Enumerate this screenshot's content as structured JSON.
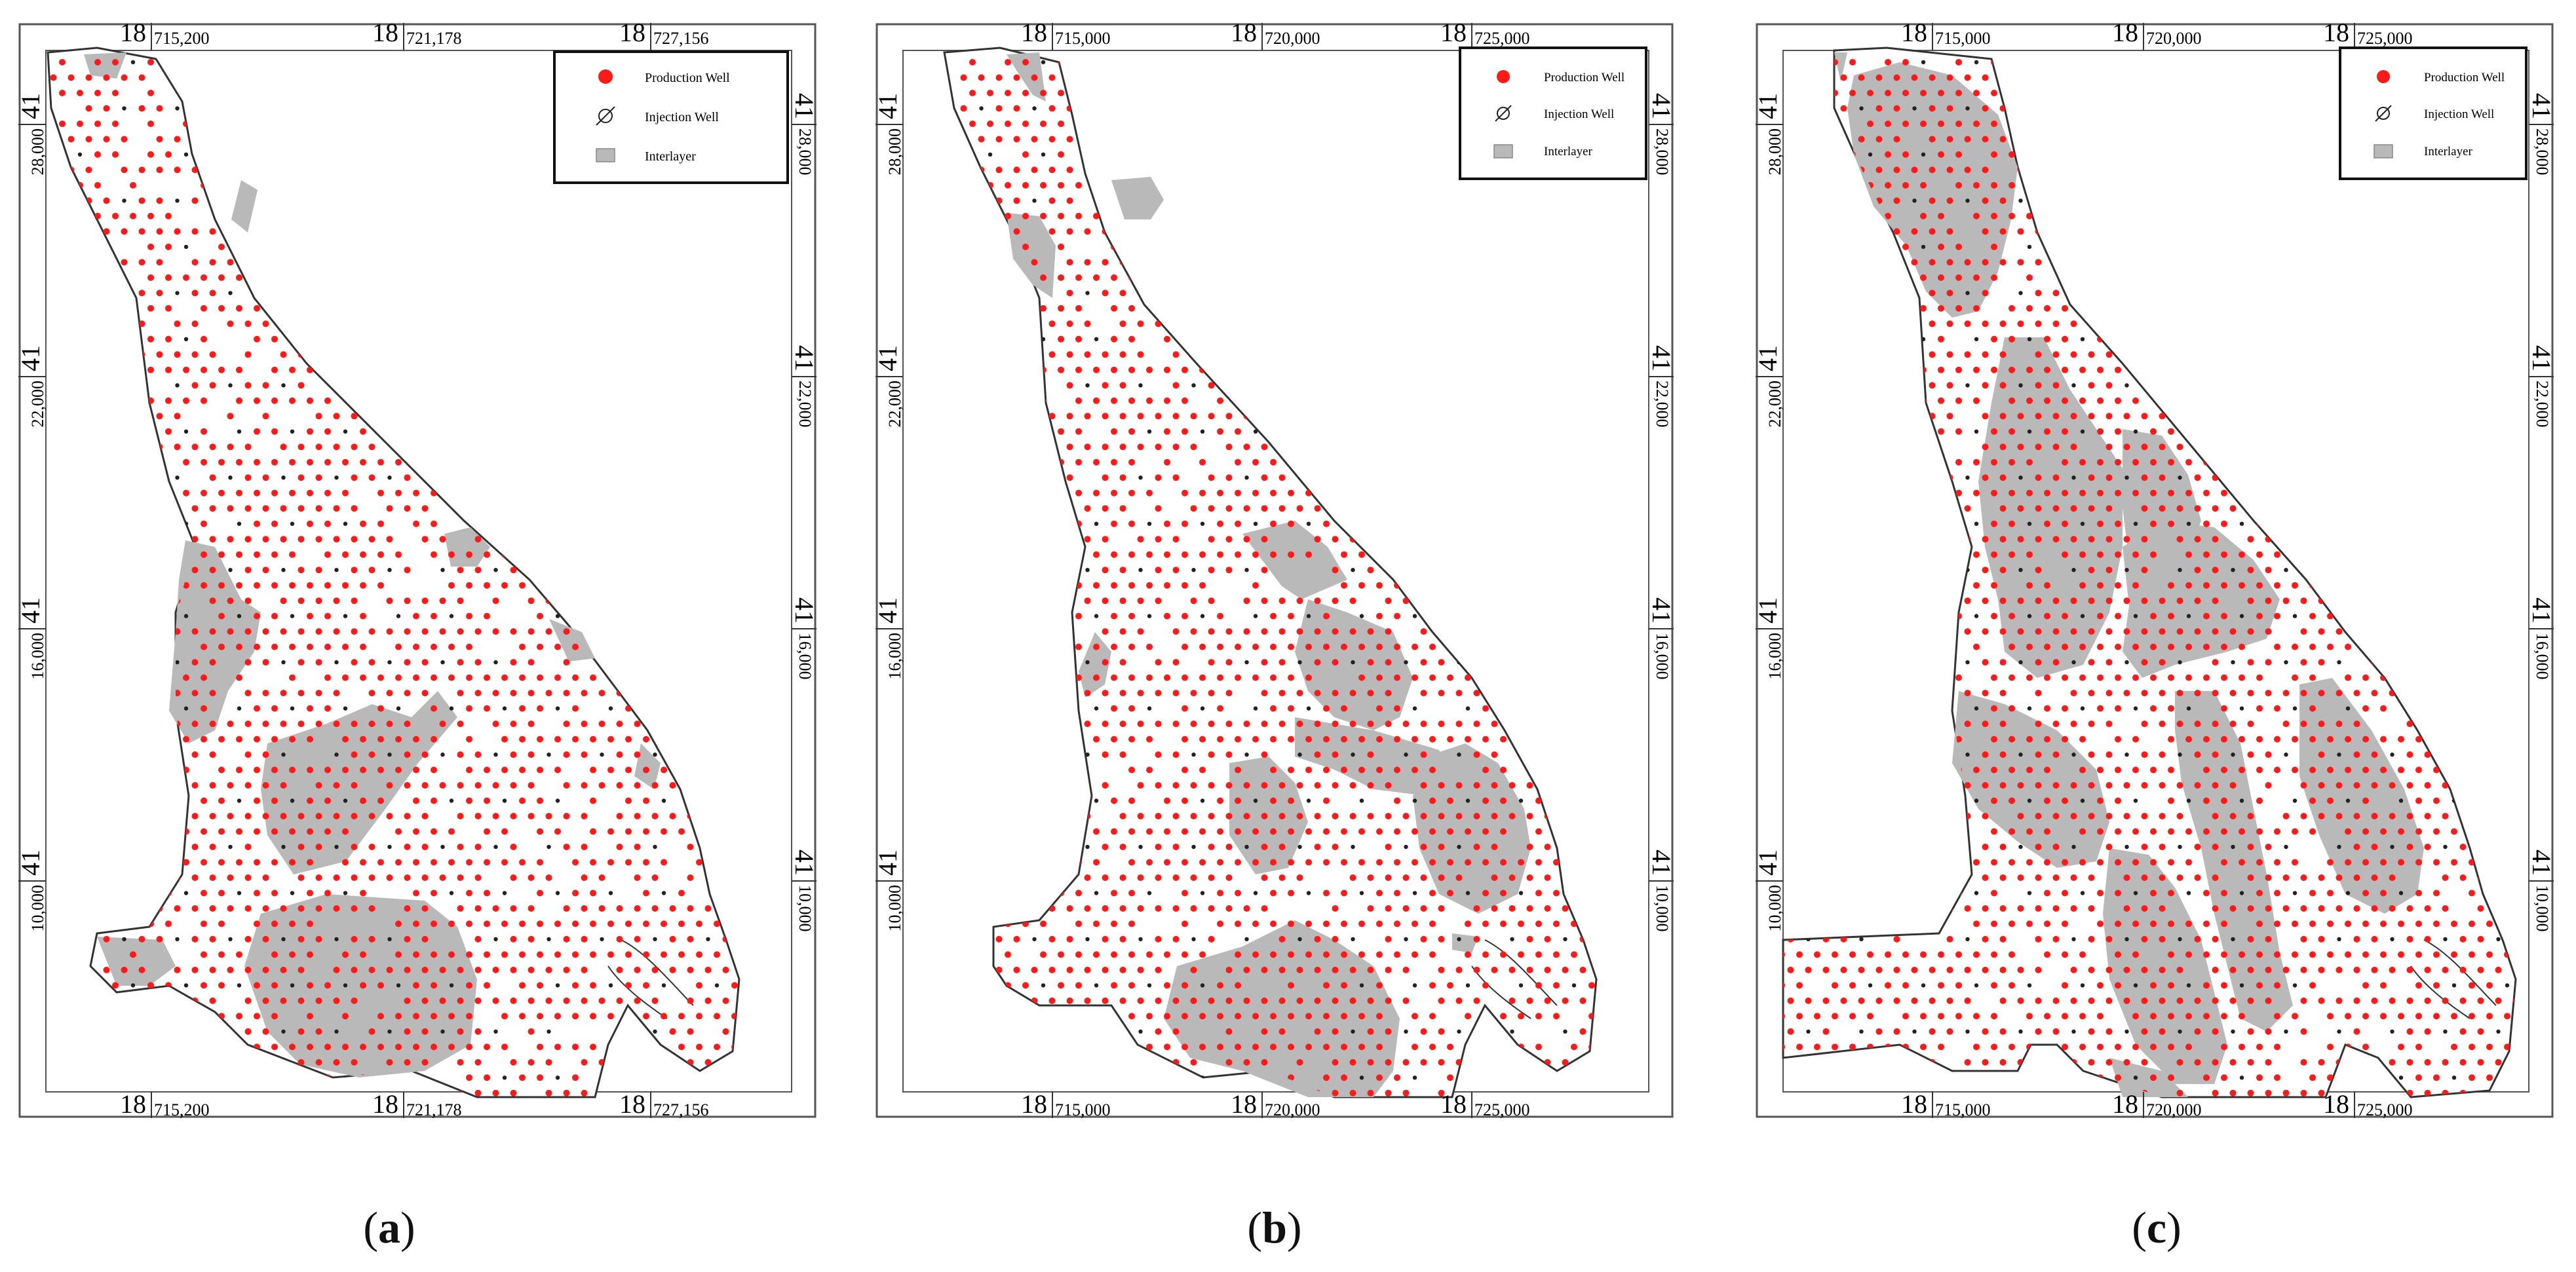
{
  "panels": [
    {
      "id": "a",
      "caption_letter": "a",
      "x_ticks": [
        {
          "prefix": "18",
          "value": "715,200"
        },
        {
          "prefix": "18",
          "value": "721,178"
        },
        {
          "prefix": "18",
          "value": "727,156"
        }
      ],
      "y_ticks": [
        {
          "prefix": "41",
          "value": "28,000"
        },
        {
          "prefix": "41",
          "value": "22,000"
        },
        {
          "prefix": "41",
          "value": "16,000"
        },
        {
          "prefix": "41",
          "value": "10,000"
        }
      ]
    },
    {
      "id": "b",
      "caption_letter": "b",
      "x_ticks": [
        {
          "prefix": "18",
          "value": "715,000"
        },
        {
          "prefix": "18",
          "value": "720,000"
        },
        {
          "prefix": "18",
          "value": "725,000"
        }
      ],
      "y_ticks": [
        {
          "prefix": "41",
          "value": "28,000"
        },
        {
          "prefix": "41",
          "value": "22,000"
        },
        {
          "prefix": "41",
          "value": "16,000"
        },
        {
          "prefix": "41",
          "value": "10,000"
        }
      ]
    },
    {
      "id": "c",
      "caption_letter": "c",
      "x_ticks": [
        {
          "prefix": "18",
          "value": "715,000"
        },
        {
          "prefix": "18",
          "value": "720,000"
        },
        {
          "prefix": "18",
          "value": "725,000"
        }
      ],
      "y_ticks": [
        {
          "prefix": "41",
          "value": "28,000"
        },
        {
          "prefix": "41",
          "value": "22,000"
        },
        {
          "prefix": "41",
          "value": "16,000"
        },
        {
          "prefix": "41",
          "value": "10,000"
        }
      ]
    }
  ],
  "legend": {
    "production_well": "Production Well",
    "injection_well": "Injection Well",
    "interlayer": "Interlayer"
  },
  "colors": {
    "production_well": "#ff1a1a",
    "injection_well": "#222222",
    "interlayer": "#b9b9b9",
    "boundary": "#333333"
  }
}
